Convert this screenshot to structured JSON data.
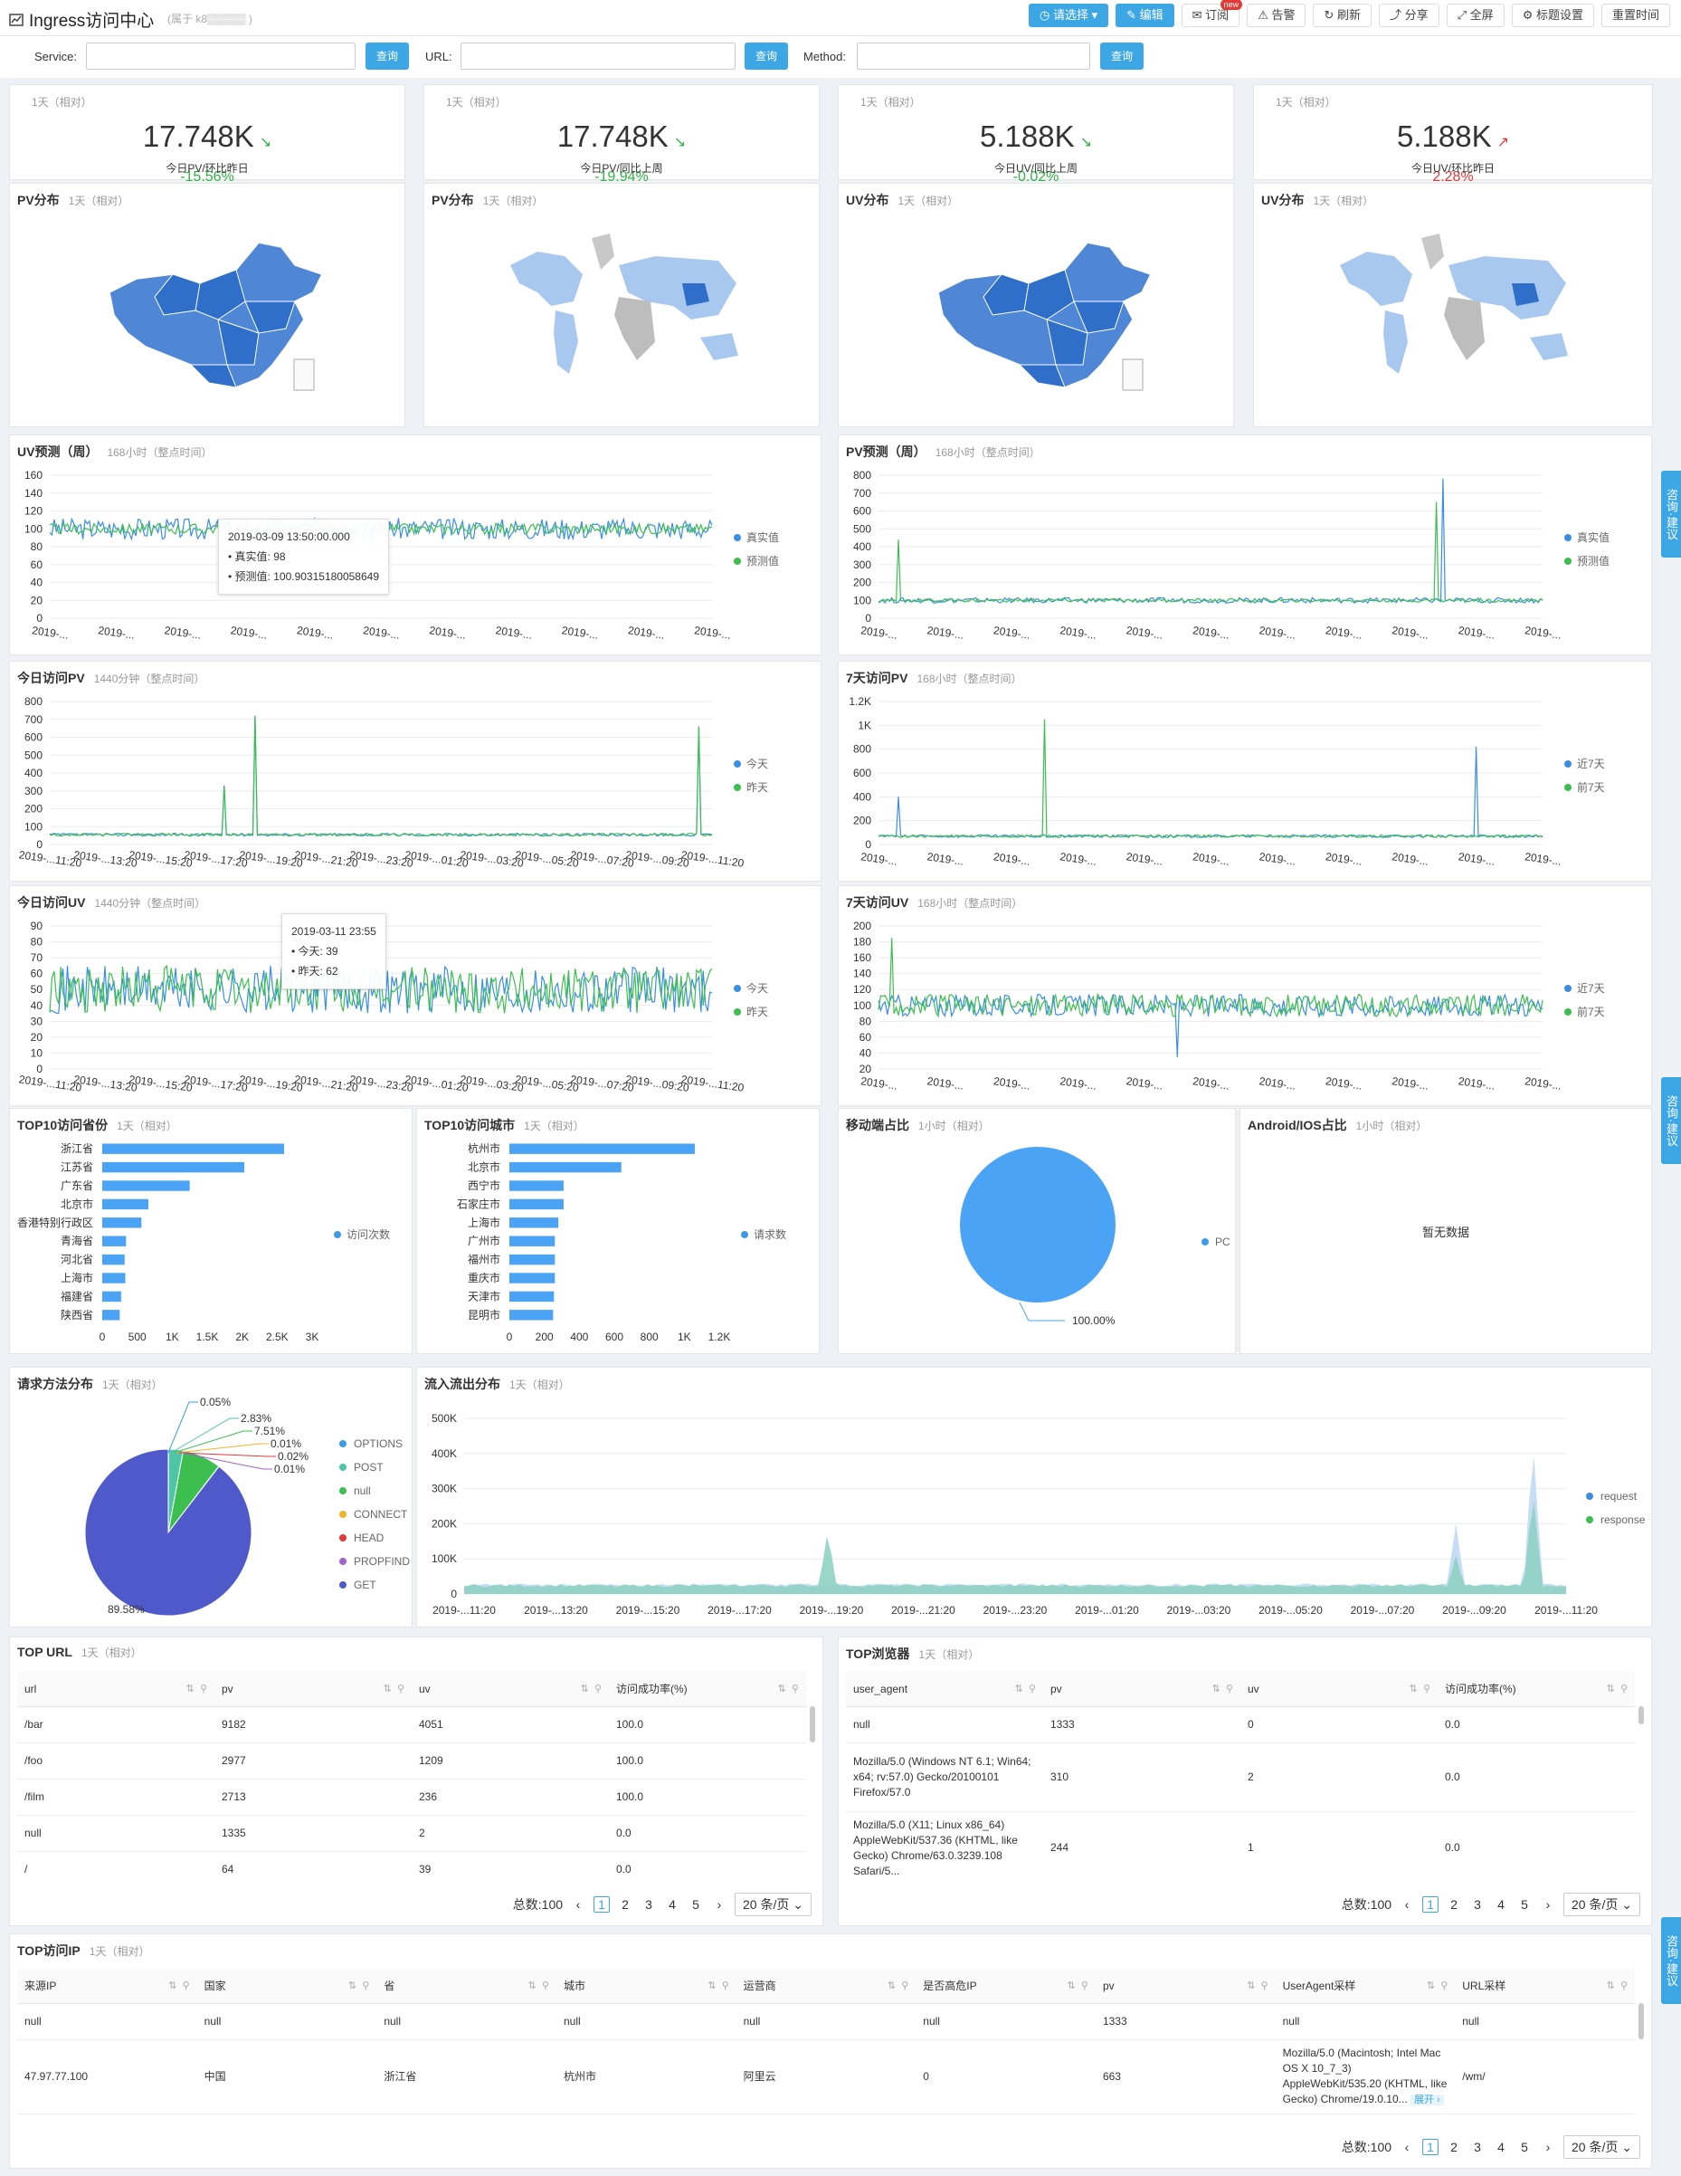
{
  "header": {
    "title": "Ingress访问中心",
    "owner": "(属于 k8▒▒▒▒▒                                     )"
  },
  "toolbar": {
    "select": "请选择",
    "edit": "编辑",
    "subscribe": "订阅",
    "new_tag": "new",
    "alert": "告警",
    "refresh": "刷新",
    "share": "分享",
    "fullscreen": "全屏",
    "title_settings": "标题设置",
    "reset_time": "重置时间"
  },
  "filters": {
    "service_label": "Service:",
    "url_label": "URL:",
    "method_label": "Method:",
    "query": "查询"
  },
  "side_tab": "咨询·建议",
  "kpis": [
    {
      "meta": "1天（相对）",
      "value": "17.748K",
      "delta": "-15.56%",
      "dir": "down",
      "caption": "今日PV/环比昨日"
    },
    {
      "meta": "1天（相对）",
      "value": "17.748K",
      "delta": "-19.94%",
      "dir": "down",
      "caption": "今日PV/同比上周"
    },
    {
      "meta": "1天（相对）",
      "value": "5.188K",
      "delta": "-0.02%",
      "dir": "down",
      "caption": "今日UV/同比上周"
    },
    {
      "meta": "1天（相对）",
      "value": "5.188K",
      "delta": "2.28%",
      "dir": "up",
      "caption": "今日UV/环比昨日"
    }
  ],
  "maps": [
    {
      "title": "PV分布",
      "meta": "1天（相对）",
      "kind": "china"
    },
    {
      "title": "PV分布",
      "meta": "1天（相对）",
      "kind": "world"
    },
    {
      "title": "UV分布",
      "meta": "1天（相对）",
      "kind": "china"
    },
    {
      "title": "UV分布",
      "meta": "1天（相对）",
      "kind": "world"
    }
  ],
  "colors": {
    "blue": "#3a8ee6",
    "green": "#3dbf4f",
    "accent": "#3da7e5",
    "pie_get": "#5059c9",
    "pie_post": "#4ec5a5",
    "pie_options": "#3c9be6",
    "teal": "#8fd1c4",
    "lightblue": "#b8d6f2"
  },
  "chart_data": [
    {
      "id": "uv_forecast",
      "type": "line",
      "title": "UV预测（周）",
      "meta": "168小时（整点时间）",
      "ylim": [
        0,
        160
      ],
      "yticks": [
        "160",
        "140",
        "120",
        "100",
        "80",
        "60",
        "40",
        "20",
        "0"
      ],
      "xticks": [
        "2019-...",
        "2019-...",
        "2019-...",
        "2019-...",
        "2019-...",
        "2019-...",
        "2019-...",
        "2019-...",
        "2019-...",
        "2019-...",
        "2019-..."
      ],
      "series": [
        {
          "name": "真实值",
          "base": 100,
          "amp": 12
        },
        {
          "name": "预测值",
          "base": 100,
          "amp": 6
        }
      ],
      "tooltip": {
        "time": "2019-03-09 13:50:00.000",
        "rows": [
          "真实值: 98",
          "预测值: 100.90315180058649"
        ]
      }
    },
    {
      "id": "pv_forecast",
      "type": "line",
      "title": "PV预测（周）",
      "meta": "168小时（整点时间）",
      "ylim": [
        0,
        800
      ],
      "yticks": [
        "800",
        "700",
        "600",
        "500",
        "400",
        "300",
        "200",
        "100",
        "0"
      ],
      "xticks": [
        "2019-...",
        "2019-...",
        "2019-...",
        "2019-...",
        "2019-...",
        "2019-...",
        "2019-...",
        "2019-...",
        "2019-...",
        "2019-...",
        "2019-..."
      ],
      "series": [
        {
          "name": "真实值",
          "base": 100,
          "amp": 15
        },
        {
          "name": "预测值",
          "base": 100,
          "amp": 10
        }
      ]
    },
    {
      "id": "today_pv",
      "type": "line",
      "title": "今日访问PV",
      "meta": "1440分钟（整点时间）",
      "ylim": [
        0,
        800
      ],
      "yticks": [
        "800",
        "700",
        "600",
        "500",
        "400",
        "300",
        "200",
        "100",
        "0"
      ],
      "xticks": [
        "2019-...11:20",
        "2019-...13:20",
        "2019-...15:20",
        "2019-...17:20",
        "2019-...19:20",
        "2019-...21:20",
        "2019-...23:20",
        "2019-...01:20",
        "2019-...03:20",
        "2019-...05:20",
        "2019-...07:20",
        "2019-...09:20",
        "2019-...11:20"
      ],
      "series": [
        {
          "name": "今天",
          "base": 55,
          "amp": 8
        },
        {
          "name": "昨天",
          "base": 55,
          "amp": 8
        }
      ]
    },
    {
      "id": "week_pv",
      "type": "line",
      "title": "7天访问PV",
      "meta": "168小时（整点时间）",
      "ylim": [
        0,
        1200
      ],
      "yticks": [
        "1.2K",
        "1K",
        "800",
        "600",
        "400",
        "200",
        "0"
      ],
      "xticks": [
        "2019-...",
        "2019-...",
        "2019-...",
        "2019-...",
        "2019-...",
        "2019-...",
        "2019-...",
        "2019-...",
        "2019-...",
        "2019-...",
        "2019-..."
      ],
      "series": [
        {
          "name": "近7天",
          "base": 70,
          "amp": 12
        },
        {
          "name": "前7天",
          "base": 70,
          "amp": 12
        }
      ]
    },
    {
      "id": "today_uv",
      "type": "line",
      "title": "今日访问UV",
      "meta": "1440分钟（整点时间）",
      "ylim": [
        0,
        90
      ],
      "yticks": [
        "90",
        "80",
        "70",
        "60",
        "50",
        "40",
        "30",
        "20",
        "10",
        "0"
      ],
      "xticks": [
        "2019-...11:20",
        "2019-...13:20",
        "2019-...15:20",
        "2019-...17:20",
        "2019-...19:20",
        "2019-...21:20",
        "2019-...23:20",
        "2019-...01:20",
        "2019-...03:20",
        "2019-...05:20",
        "2019-...07:20",
        "2019-...09:20",
        "2019-...11:20"
      ],
      "series": [
        {
          "name": "今天",
          "base": 50,
          "amp": 15
        },
        {
          "name": "昨天",
          "base": 50,
          "amp": 15
        }
      ],
      "tooltip": {
        "time": "2019-03-11 23:55",
        "rows": [
          "今天: 39",
          "昨天: 62"
        ]
      }
    },
    {
      "id": "week_uv",
      "type": "line",
      "title": "7天访问UV",
      "meta": "168小时（整点时间）",
      "ylim": [
        20,
        200
      ],
      "yticks": [
        "200",
        "180",
        "160",
        "140",
        "120",
        "100",
        "80",
        "60",
        "40",
        "20"
      ],
      "xticks": [
        "2019-...",
        "2019-...",
        "2019-...",
        "2019-...",
        "2019-...",
        "2019-...",
        "2019-...",
        "2019-...",
        "2019-...",
        "2019-...",
        "2019-..."
      ],
      "series": [
        {
          "name": "近7天",
          "base": 100,
          "amp": 14
        },
        {
          "name": "前7天",
          "base": 100,
          "amp": 14
        }
      ]
    },
    {
      "id": "top_province",
      "type": "bar",
      "title": "TOP10访问省份",
      "meta": "1天（相对）",
      "categories": [
        "浙江省",
        "江苏省",
        "广东省",
        "北京市",
        "香港特别行政区",
        "青海省",
        "河北省",
        "上海市",
        "福建省",
        "陕西省"
      ],
      "values": [
        2600,
        2030,
        1250,
        660,
        560,
        340,
        320,
        330,
        270,
        250
      ],
      "xlim": [
        0,
        3000
      ],
      "xticks": [
        "0",
        "500",
        "1K",
        "1.5K",
        "2K",
        "2.5K",
        "3K"
      ],
      "legend": "访问次数"
    },
    {
      "id": "top_city",
      "type": "bar",
      "title": "TOP10访问城市",
      "meta": "1天（相对）",
      "categories": [
        "杭州市",
        "北京市",
        "西宁市",
        "石家庄市",
        "上海市",
        "广州市",
        "福州市",
        "重庆市",
        "天津市",
        "昆明市"
      ],
      "values": [
        1060,
        640,
        310,
        310,
        280,
        260,
        260,
        260,
        255,
        250
      ],
      "xlim": [
        0,
        1200
      ],
      "xticks": [
        "0",
        "200",
        "400",
        "600",
        "800",
        "1K",
        "1.2K"
      ],
      "legend": "请求数"
    },
    {
      "id": "mobile_share",
      "type": "pie",
      "title": "移动端占比",
      "meta": "1小时（相对）",
      "slices": [
        {
          "name": "PC",
          "value": 100
        }
      ],
      "label": "100.00%"
    },
    {
      "id": "request_methods",
      "type": "pie",
      "title": "请求方法分布",
      "meta": "1天（相对）",
      "slices": [
        {
          "name": "OPTIONS",
          "value": 0.05
        },
        {
          "name": "POST",
          "value": 2.83
        },
        {
          "name": "null",
          "value": 7.51
        },
        {
          "name": "CONNECT",
          "value": 0.01
        },
        {
          "name": "HEAD",
          "value": 0.02
        },
        {
          "name": "PROPFIND",
          "value": 0.01
        },
        {
          "name": "GET",
          "value": 89.58
        }
      ],
      "labels": [
        "0.05%",
        "2.83%",
        "7.51%",
        "0.01%",
        "0.02%",
        "0.01%",
        "89.58%"
      ]
    },
    {
      "id": "traffic_flow",
      "type": "area",
      "title": "流入流出分布",
      "meta": "1天（相对）",
      "ylim": [
        0,
        500000
      ],
      "yticks": [
        "500K",
        "400K",
        "300K",
        "200K",
        "100K",
        "0"
      ],
      "xticks": [
        "2019-...11:20",
        "2019-...13:20",
        "2019-...15:20",
        "2019-...17:20",
        "2019-...19:20",
        "2019-...21:20",
        "2019-...23:20",
        "2019-...01:20",
        "2019-...03:20",
        "2019-...05:20",
        "2019-...07:20",
        "2019-...09:20",
        "2019-...11:20"
      ],
      "series": [
        {
          "name": "request"
        },
        {
          "name": "response"
        }
      ]
    }
  ],
  "android_ios": {
    "title": "Android/IOS占比",
    "meta": "1小时（相对）",
    "empty": "暂无数据"
  },
  "top_url": {
    "title": "TOP URL",
    "meta": "1天（相对）",
    "columns": [
      "url",
      "pv",
      "uv",
      "访问成功率(%)"
    ],
    "rows": [
      [
        "/bar",
        "9182",
        "4051",
        "100.0"
      ],
      [
        "/foo",
        "2977",
        "1209",
        "100.0"
      ],
      [
        "/film",
        "2713",
        "236",
        "100.0"
      ],
      [
        "null",
        "1335",
        "2",
        "0.0"
      ],
      [
        "/",
        "64",
        "39",
        "0.0"
      ]
    ]
  },
  "top_browser": {
    "title": "TOP浏览器",
    "meta": "1天（相对）",
    "columns": [
      "user_agent",
      "pv",
      "uv",
      "访问成功率(%)"
    ],
    "rows": [
      [
        "null",
        "1333",
        "0",
        "0.0"
      ],
      [
        "Mozilla/5.0 (Windows NT 6.1; Win64; x64; rv:57.0) Gecko/20100101 Firefox/57.0",
        "310",
        "2",
        "0.0"
      ],
      [
        "Mozilla/5.0 (X11; Linux x86_64) AppleWebKit/537.36 (KHTML, like Gecko) Chrome/63.0.3239.108 Safari/5...",
        "244",
        "1",
        "0.0"
      ]
    ]
  },
  "top_ip": {
    "title": "TOP访问IP",
    "meta": "1天（相对）",
    "columns": [
      "来源IP",
      "国家",
      "省",
      "城市",
      "运营商",
      "是否高危IP",
      "pv",
      "UserAgent采样",
      "URL采样"
    ],
    "rows": [
      [
        "null",
        "null",
        "null",
        "null",
        "null",
        "null",
        "1333",
        "null",
        "null"
      ],
      [
        "47.97.77.100",
        "中国",
        "浙江省",
        "杭州市",
        "阿里云",
        "0",
        "663",
        "Mozilla/5.0 (Macintosh; Intel Mac OS X 10_7_3) AppleWebKit/535.20 (KHTML, like Gecko) Chrome/19.0.10...",
        "/wm/"
      ]
    ],
    "expand": "展开 ›"
  },
  "pager": {
    "total": "总数:100",
    "pages": [
      "1",
      "2",
      "3",
      "4",
      "5"
    ],
    "prev": "‹",
    "next": "›",
    "size": "20 条/页 ⌄"
  }
}
